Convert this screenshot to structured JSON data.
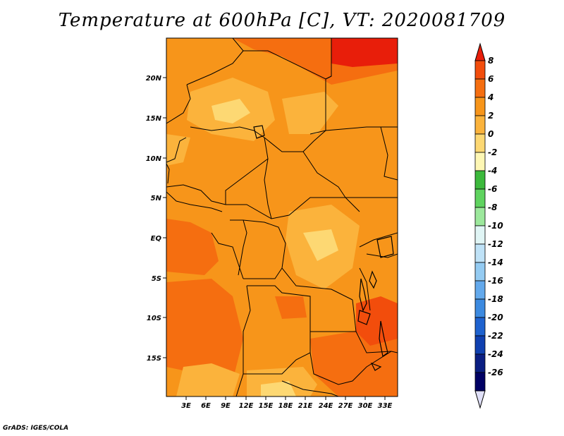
{
  "title": "Temperature at 600hPa [C], VT: 2020081709",
  "credit": "GrADS: IGES/COLA",
  "lat_labels": [
    "20N",
    "15N",
    "10N",
    "5N",
    "EQ",
    "5S",
    "10S",
    "15S"
  ],
  "lon_labels": [
    "3E",
    "6E",
    "9E",
    "12E",
    "15E",
    "18E",
    "21E",
    "24E",
    "27E",
    "30E",
    "33E"
  ],
  "colorbar": {
    "labels": [
      "8",
      "6",
      "4",
      "2",
      "0",
      "-2",
      "-4",
      "-6",
      "-8",
      "-10",
      "-12",
      "-14",
      "-16",
      "-18",
      "-20",
      "-22",
      "-24",
      "-26"
    ],
    "colors": [
      "#e81e0a",
      "#f24d0c",
      "#f56e10",
      "#f7951a",
      "#fbb33c",
      "#fdd873",
      "#fef7b4",
      "#3cb93c",
      "#5fd35f",
      "#9ce89c",
      "#e0f5f5",
      "#bfe2f7",
      "#94cbf2",
      "#63a9ec",
      "#3c8ae0",
      "#1e62cf",
      "#0f40b0",
      "#0a1e82",
      "#000064",
      "#e0e0f8"
    ]
  }
}
